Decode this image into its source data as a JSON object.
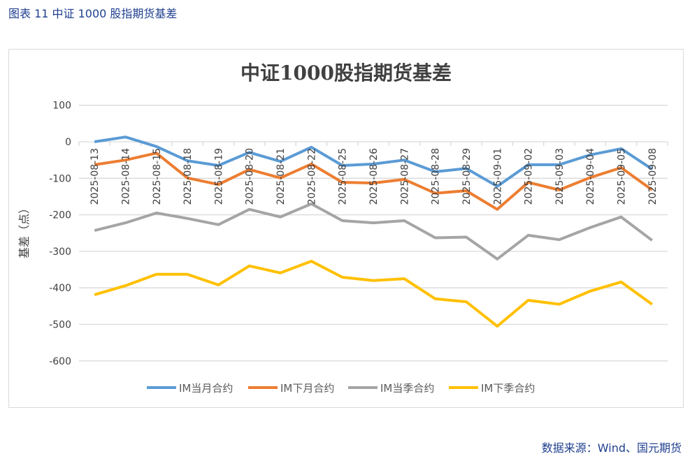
{
  "caption": "图表 11  中证 1000 股指期货基差",
  "source": "数据来源：Wind、国元期货",
  "chart_data": {
    "type": "line",
    "title": "中证1000股指期货基差",
    "xlabel": "",
    "ylabel": "基差（点）",
    "ylim": [
      -600,
      100
    ],
    "yticks": [
      100,
      0,
      -100,
      -200,
      -300,
      -400,
      -500,
      -600
    ],
    "grid": true,
    "legend": "bottom",
    "categories": [
      "2025-08-13",
      "2025-08-14",
      "2025-08-15",
      "2025-08-18",
      "2025-08-19",
      "2025-08-20",
      "2025-08-21",
      "2025-08-22",
      "2025-08-25",
      "2025-08-26",
      "2025-08-27",
      "2025-08-28",
      "2025-08-29",
      "2025-09-01",
      "2025-09-02",
      "2025-09-03",
      "2025-09-04",
      "2025-09-05",
      "2025-09-08"
    ],
    "series": [
      {
        "name": "IM当月合约",
        "color": "#5b9bd5",
        "values": [
          0,
          13,
          -13,
          -52,
          -65,
          -29,
          -54,
          -15,
          -65,
          -61,
          -50,
          -82,
          -73,
          -122,
          -63,
          -63,
          -36,
          -19,
          -75
        ]
      },
      {
        "name": "IM下月合约",
        "color": "#ed7d31",
        "values": [
          -63,
          -50,
          -31,
          -99,
          -117,
          -76,
          -99,
          -61,
          -111,
          -113,
          -103,
          -141,
          -134,
          -185,
          -111,
          -132,
          -98,
          -71,
          -132
        ]
      },
      {
        "name": "IM当季合约",
        "color": "#a5a5a5",
        "values": [
          -243,
          -222,
          -195,
          -210,
          -227,
          -185,
          -206,
          -170,
          -216,
          -222,
          -216,
          -263,
          -261,
          -321,
          -256,
          -268,
          -235,
          -206,
          -270
        ]
      },
      {
        "name": "IM下季合约",
        "color": "#ffc000",
        "values": [
          -419,
          -394,
          -363,
          -363,
          -392,
          -340,
          -359,
          -327,
          -371,
          -380,
          -375,
          -430,
          -438,
          -505,
          -434,
          -445,
          -409,
          -384,
          -445
        ]
      }
    ]
  }
}
